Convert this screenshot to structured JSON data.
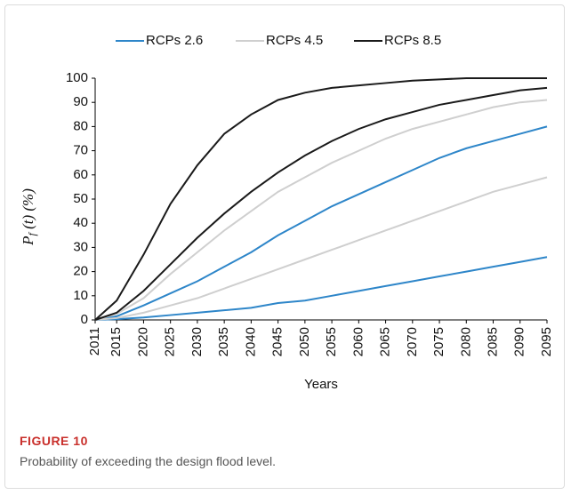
{
  "chart_data": {
    "type": "line",
    "y_label": [
      "P",
      "f",
      " (t) (%)"
    ],
    "x_label": "Years",
    "x": [
      2011,
      2015,
      2020,
      2025,
      2030,
      2035,
      2040,
      2045,
      2050,
      2055,
      2060,
      2065,
      2070,
      2075,
      2080,
      2085,
      2090,
      2095
    ],
    "xlim": [
      2011,
      2095
    ],
    "xticks": [
      2011,
      2015,
      2020,
      2025,
      2030,
      2035,
      2040,
      2045,
      2050,
      2055,
      2060,
      2065,
      2070,
      2075,
      2080,
      2085,
      2090,
      2095
    ],
    "ylim": [
      0,
      100
    ],
    "yticks": [
      0,
      10,
      20,
      30,
      40,
      50,
      60,
      70,
      80,
      90,
      100
    ],
    "grid": false,
    "series": [
      {
        "name": "RCPs 2.6",
        "color": "#2e86c9",
        "lines": [
          {
            "values": [
              0,
              1.5,
              6,
              11,
              16,
              22,
              28,
              35,
              41,
              47,
              52,
              57,
              62,
              67,
              71,
              74,
              77,
              80
            ]
          },
          {
            "values": [
              0,
              0.3,
              1,
              2,
              3,
              4,
              5,
              7,
              8,
              10,
              12,
              14,
              16,
              18,
              20,
              22,
              24,
              26
            ]
          }
        ]
      },
      {
        "name": "RCPs 4.5",
        "color": "#cfcfcf",
        "lines": [
          {
            "values": [
              0,
              2.5,
              9,
              19,
              28,
              37,
              45,
              53,
              59,
              65,
              70,
              75,
              79,
              82,
              85,
              88,
              90,
              91
            ]
          },
          {
            "values": [
              0,
              0.8,
              3,
              6,
              9,
              13,
              17,
              21,
              25,
              29,
              33,
              37,
              41,
              45,
              49,
              53,
              56,
              59
            ]
          }
        ]
      },
      {
        "name": "RCPs 8.5",
        "color": "#1a1a1a",
        "lines": [
          {
            "values": [
              0,
              8,
              27,
              48,
              64,
              77,
              85,
              91,
              94,
              96,
              97,
              98,
              99,
              99.5,
              100,
              100,
              100,
              100
            ]
          },
          {
            "values": [
              0,
              3,
              12,
              23,
              34,
              44,
              53,
              61,
              68,
              74,
              79,
              83,
              86,
              89,
              91,
              93,
              95,
              96
            ]
          }
        ]
      }
    ]
  },
  "caption": {
    "label": "FIGURE 10",
    "text": "Probability of exceeding the design flood level."
  }
}
